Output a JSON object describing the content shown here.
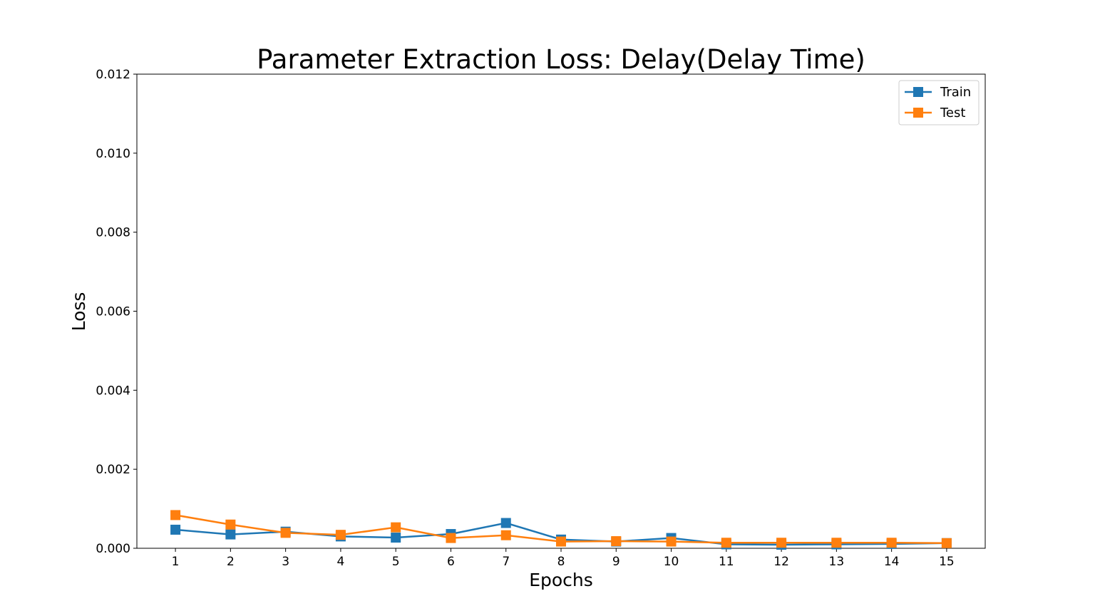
{
  "chart_data": {
    "type": "line",
    "title": "Parameter Extraction Loss: Delay(Delay Time)",
    "xlabel": "Epochs",
    "ylabel": "Loss",
    "x": [
      1,
      2,
      3,
      4,
      5,
      6,
      7,
      8,
      9,
      10,
      11,
      12,
      13,
      14,
      15
    ],
    "x_tick_labels": [
      "1",
      "2",
      "3",
      "4",
      "5",
      "6",
      "7",
      "8",
      "9",
      "10",
      "11",
      "12",
      "13",
      "14",
      "15"
    ],
    "ylim": [
      0,
      0.012
    ],
    "y_ticks": [
      0,
      0.002,
      0.004,
      0.006,
      0.008,
      0.01,
      0.012
    ],
    "y_tick_labels": [
      "0.000",
      "0.002",
      "0.004",
      "0.006",
      "0.008",
      "0.010",
      "0.012"
    ],
    "grid": false,
    "legend": "top-right",
    "marker": "square",
    "series": [
      {
        "name": "Train",
        "color": "#1f77b4",
        "values": [
          0.00047,
          0.00035,
          0.00042,
          0.0003,
          0.00027,
          0.00036,
          0.00064,
          0.00022,
          0.00017,
          0.00026,
          0.0001,
          9e-05,
          0.0001,
          0.00011,
          0.00013
        ]
      },
      {
        "name": "Test",
        "color": "#ff7f0e",
        "values": [
          0.00084,
          0.0006,
          0.00039,
          0.00034,
          0.00053,
          0.00026,
          0.00033,
          0.00017,
          0.00018,
          0.00017,
          0.00014,
          0.00014,
          0.00014,
          0.00014,
          0.00013
        ]
      }
    ]
  }
}
